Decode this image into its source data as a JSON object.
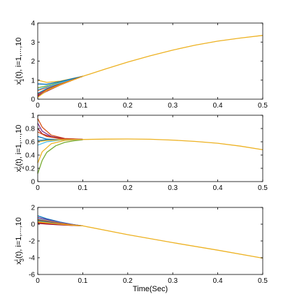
{
  "chart_data": [
    {
      "type": "line",
      "ylabel_main": "x",
      "ylabel_sub": "1",
      "ylabel_sup": "i",
      "ylabel_rest": "(t), i=1,...,10",
      "xlabel": "",
      "xlim": [
        0,
        0.5
      ],
      "ylim": [
        0,
        4
      ],
      "xticks": [
        "0",
        "0.1",
        "0.2",
        "0.3",
        "0.4",
        "0.5"
      ],
      "yticks": [
        "0",
        "1",
        "2",
        "3",
        "4"
      ],
      "grid": false,
      "series": [
        {
          "color": "#0072bd",
          "values": [
            [
              0,
              0.3
            ],
            [
              0.02,
              0.55
            ],
            [
              0.05,
              0.82
            ],
            [
              0.08,
              1.05
            ],
            [
              0.1,
              1.2
            ]
          ]
        },
        {
          "color": "#d95319",
          "values": [
            [
              0,
              0.45
            ],
            [
              0.02,
              0.62
            ],
            [
              0.05,
              0.86
            ],
            [
              0.08,
              1.07
            ],
            [
              0.1,
              1.2
            ]
          ]
        },
        {
          "color": "#edb120",
          "values": [
            [
              0,
              1.0
            ],
            [
              0.02,
              0.88
            ],
            [
              0.05,
              0.95
            ],
            [
              0.08,
              1.1
            ],
            [
              0.1,
              1.2
            ]
          ]
        },
        {
          "color": "#7e2f8e",
          "values": [
            [
              0,
              0.2
            ],
            [
              0.02,
              0.48
            ],
            [
              0.05,
              0.78
            ],
            [
              0.08,
              1.03
            ],
            [
              0.1,
              1.2
            ]
          ]
        },
        {
          "color": "#77ac30",
          "values": [
            [
              0,
              0.6
            ],
            [
              0.02,
              0.7
            ],
            [
              0.05,
              0.88
            ],
            [
              0.08,
              1.08
            ],
            [
              0.1,
              1.2
            ]
          ]
        },
        {
          "color": "#4dbeee",
          "values": [
            [
              0,
              0.5
            ],
            [
              0.02,
              0.65
            ],
            [
              0.05,
              0.86
            ],
            [
              0.08,
              1.07
            ],
            [
              0.1,
              1.2
            ]
          ]
        },
        {
          "color": "#a2142f",
          "values": [
            [
              0,
              0.15
            ],
            [
              0.02,
              0.42
            ],
            [
              0.05,
              0.75
            ],
            [
              0.08,
              1.02
            ],
            [
              0.1,
              1.2
            ]
          ]
        },
        {
          "color": "#0072bd",
          "values": [
            [
              0,
              0.8
            ],
            [
              0.02,
              0.78
            ],
            [
              0.05,
              0.92
            ],
            [
              0.08,
              1.09
            ],
            [
              0.1,
              1.2
            ]
          ]
        },
        {
          "color": "#d95319",
          "values": [
            [
              0,
              0.25
            ],
            [
              0.02,
              0.5
            ],
            [
              0.05,
              0.8
            ],
            [
              0.08,
              1.04
            ],
            [
              0.1,
              1.2
            ]
          ]
        },
        {
          "color": "#edb120",
          "values": [
            [
              0,
              0.1
            ],
            [
              0.02,
              0.45
            ],
            [
              0.05,
              0.76
            ],
            [
              0.08,
              1.02
            ],
            [
              0.1,
              1.2
            ],
            [
              0.15,
              1.58
            ],
            [
              0.2,
              1.95
            ],
            [
              0.25,
              2.28
            ],
            [
              0.3,
              2.58
            ],
            [
              0.35,
              2.84
            ],
            [
              0.4,
              3.05
            ],
            [
              0.45,
              3.21
            ],
            [
              0.5,
              3.35
            ]
          ]
        }
      ]
    },
    {
      "type": "line",
      "ylabel_main": "x",
      "ylabel_sub": "2",
      "ylabel_sup": "i",
      "ylabel_rest": "(t), i=1,...,10",
      "xlabel": "",
      "xlim": [
        0,
        0.5
      ],
      "ylim": [
        0,
        1
      ],
      "xticks": [
        "0",
        "0.1",
        "0.2",
        "0.3",
        "0.4",
        "0.5"
      ],
      "yticks": [
        "0",
        "0.2",
        "0.4",
        "0.6",
        "0.8",
        "1"
      ],
      "grid": false,
      "series": [
        {
          "color": "#0072bd",
          "values": [
            [
              0,
              0.68
            ],
            [
              0.02,
              0.64
            ],
            [
              0.05,
              0.63
            ],
            [
              0.1,
              0.635
            ]
          ]
        },
        {
          "color": "#d95319",
          "values": [
            [
              0,
              0.95
            ],
            [
              0.01,
              0.82
            ],
            [
              0.03,
              0.7
            ],
            [
              0.06,
              0.65
            ],
            [
              0.1,
              0.638
            ]
          ]
        },
        {
          "color": "#edb120",
          "values": [
            [
              0,
              0.28
            ],
            [
              0.01,
              0.45
            ],
            [
              0.03,
              0.57
            ],
            [
              0.06,
              0.62
            ],
            [
              0.1,
              0.635
            ]
          ]
        },
        {
          "color": "#7e2f8e",
          "values": [
            [
              0,
              0.88
            ],
            [
              0.01,
              0.76
            ],
            [
              0.03,
              0.68
            ],
            [
              0.06,
              0.645
            ],
            [
              0.1,
              0.637
            ]
          ]
        },
        {
          "color": "#77ac30",
          "values": [
            [
              0,
              0.12
            ],
            [
              0.01,
              0.32
            ],
            [
              0.02,
              0.44
            ],
            [
              0.04,
              0.54
            ],
            [
              0.06,
              0.59
            ],
            [
              0.08,
              0.615
            ],
            [
              0.1,
              0.63
            ]
          ]
        },
        {
          "color": "#4dbeee",
          "values": [
            [
              0,
              0.55
            ],
            [
              0.02,
              0.6
            ],
            [
              0.05,
              0.625
            ],
            [
              0.1,
              0.634
            ]
          ]
        },
        {
          "color": "#a2142f",
          "values": [
            [
              0,
              0.8
            ],
            [
              0.01,
              0.72
            ],
            [
              0.03,
              0.67
            ],
            [
              0.06,
              0.645
            ],
            [
              0.1,
              0.637
            ]
          ]
        },
        {
          "color": "#0072bd",
          "values": [
            [
              0,
              0.62
            ],
            [
              0.02,
              0.63
            ],
            [
              0.05,
              0.632
            ],
            [
              0.1,
              0.635
            ]
          ]
        },
        {
          "color": "#d95319",
          "values": [
            [
              0,
              0.75
            ],
            [
              0.02,
              0.68
            ],
            [
              0.05,
              0.645
            ],
            [
              0.1,
              0.636
            ]
          ]
        },
        {
          "color": "#edb120",
          "values": [
            [
              0,
              0.6
            ],
            [
              0.02,
              0.62
            ],
            [
              0.05,
              0.63
            ],
            [
              0.1,
              0.635
            ],
            [
              0.15,
              0.64
            ],
            [
              0.2,
              0.642
            ],
            [
              0.25,
              0.638
            ],
            [
              0.3,
              0.625
            ],
            [
              0.35,
              0.605
            ],
            [
              0.4,
              0.578
            ],
            [
              0.45,
              0.535
            ],
            [
              0.5,
              0.48
            ]
          ]
        }
      ]
    },
    {
      "type": "line",
      "ylabel_main": "x",
      "ylabel_sub": "3",
      "ylabel_sup": "i",
      "ylabel_rest": "(t), i=1,...,10",
      "xlabel": "Time(Sec)",
      "xlim": [
        0,
        0.5
      ],
      "ylim": [
        -6,
        2
      ],
      "xticks": [
        "0",
        "0.1",
        "0.2",
        "0.3",
        "0.4",
        "0.5"
      ],
      "yticks": [
        "-6",
        "-4",
        "-2",
        "0",
        "2"
      ],
      "grid": false,
      "series": [
        {
          "color": "#0072bd",
          "values": [
            [
              0,
              1.0
            ],
            [
              0.02,
              0.65
            ],
            [
              0.05,
              0.25
            ],
            [
              0.08,
              -0.05
            ],
            [
              0.1,
              -0.2
            ]
          ]
        },
        {
          "color": "#d95319",
          "values": [
            [
              0,
              0.2
            ],
            [
              0.02,
              0.1
            ],
            [
              0.05,
              -0.05
            ],
            [
              0.08,
              -0.15
            ],
            [
              0.1,
              -0.2
            ]
          ]
        },
        {
          "color": "#edb120",
          "values": [
            [
              0,
              0.5
            ],
            [
              0.02,
              0.35
            ],
            [
              0.05,
              0.1
            ],
            [
              0.08,
              -0.1
            ],
            [
              0.1,
              -0.2
            ]
          ]
        },
        {
          "color": "#7e2f8e",
          "values": [
            [
              0,
              0.8
            ],
            [
              0.02,
              0.55
            ],
            [
              0.05,
              0.2
            ],
            [
              0.08,
              -0.07
            ],
            [
              0.1,
              -0.2
            ]
          ]
        },
        {
          "color": "#77ac30",
          "values": [
            [
              0,
              0.35
            ],
            [
              0.02,
              0.22
            ],
            [
              0.05,
              0.03
            ],
            [
              0.08,
              -0.12
            ],
            [
              0.1,
              -0.2
            ]
          ]
        },
        {
          "color": "#4dbeee",
          "values": [
            [
              0,
              0.65
            ],
            [
              0.02,
              0.45
            ],
            [
              0.05,
              0.15
            ],
            [
              0.08,
              -0.08
            ],
            [
              0.1,
              -0.2
            ]
          ]
        },
        {
          "color": "#a2142f",
          "values": [
            [
              0,
              0.1
            ],
            [
              0.02,
              0.02
            ],
            [
              0.05,
              -0.08
            ],
            [
              0.08,
              -0.16
            ],
            [
              0.1,
              -0.2
            ]
          ]
        },
        {
          "color": "#0072bd",
          "values": [
            [
              0,
              0.45
            ],
            [
              0.02,
              0.3
            ],
            [
              0.05,
              0.07
            ],
            [
              0.08,
              -0.11
            ],
            [
              0.1,
              -0.2
            ]
          ]
        },
        {
          "color": "#d95319",
          "values": [
            [
              0,
              0.55
            ],
            [
              0.02,
              0.38
            ],
            [
              0.05,
              0.12
            ],
            [
              0.08,
              -0.09
            ],
            [
              0.1,
              -0.2
            ]
          ]
        },
        {
          "color": "#edb120",
          "values": [
            [
              0,
              0.3
            ],
            [
              0.02,
              0.18
            ],
            [
              0.05,
              0.0
            ],
            [
              0.08,
              -0.13
            ],
            [
              0.1,
              -0.2
            ],
            [
              0.2,
              -1.25
            ],
            [
              0.3,
              -2.2
            ],
            [
              0.4,
              -3.1
            ],
            [
              0.5,
              -4.05
            ]
          ]
        }
      ]
    }
  ]
}
